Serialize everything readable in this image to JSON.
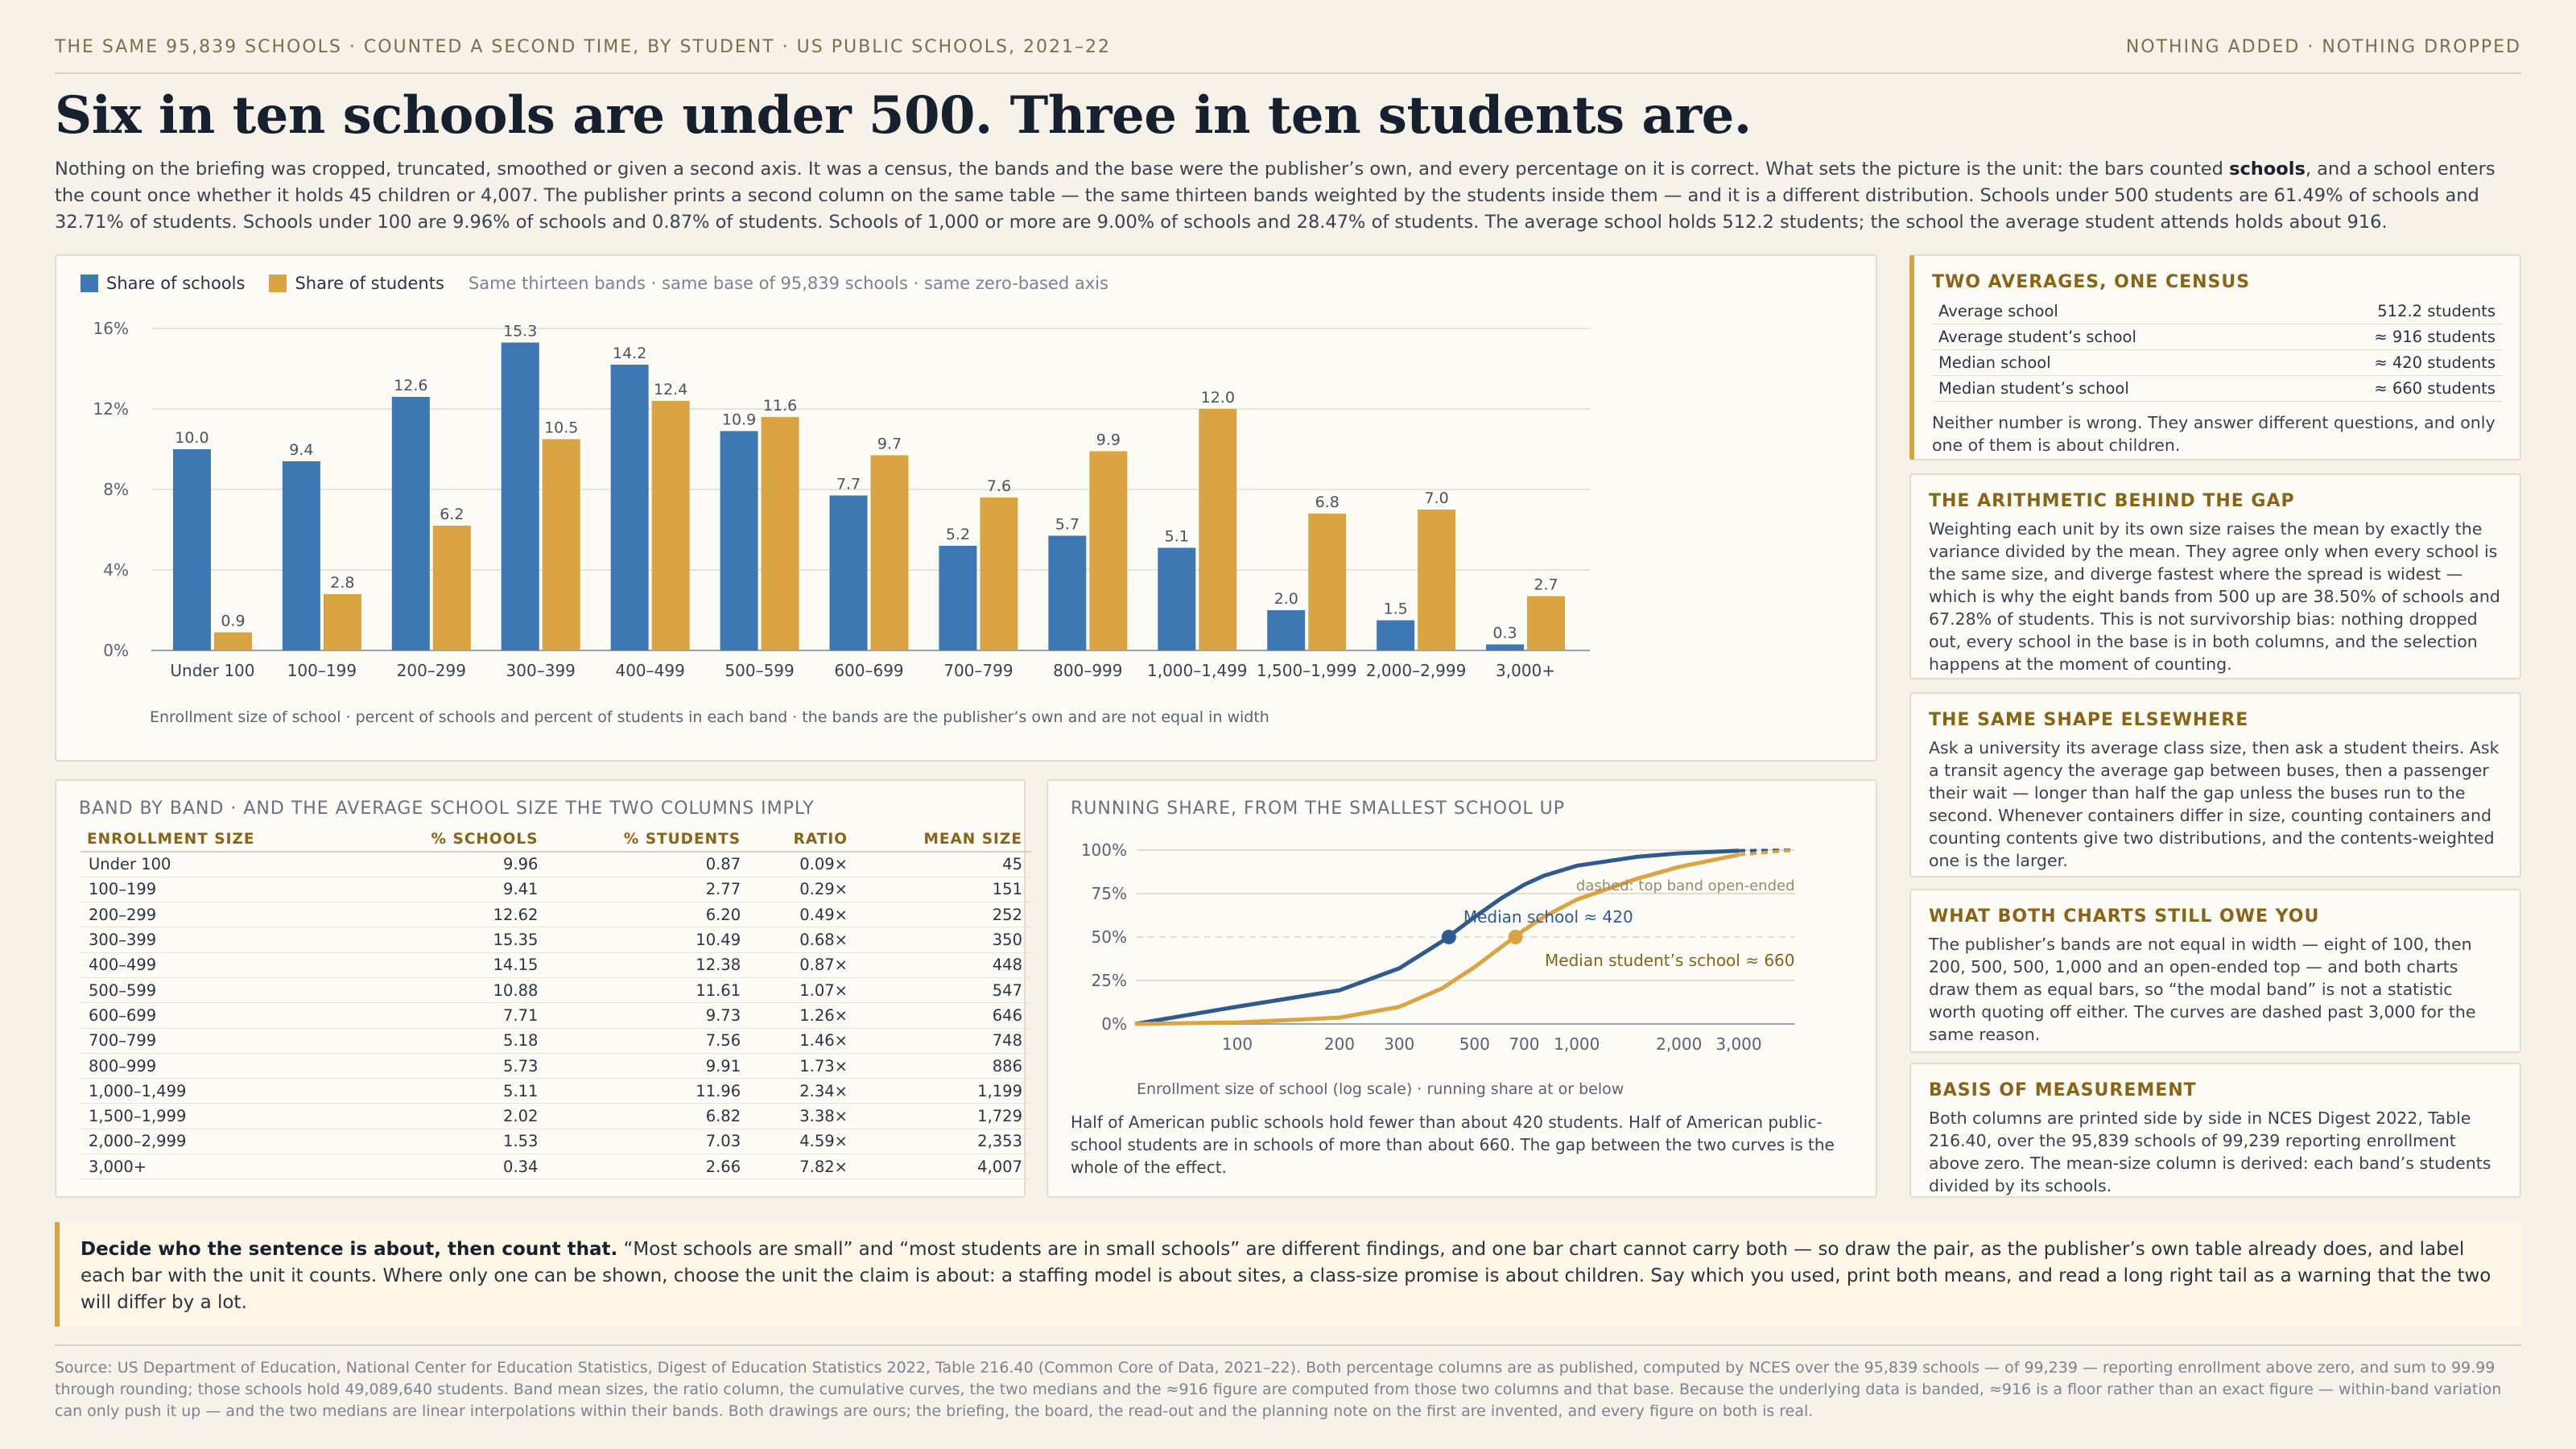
{
  "header": {
    "kicker": "THE SAME 95,839 SCHOOLS · COUNTED A SECOND TIME, BY STUDENT · US PUBLIC SCHOOLS, 2021–22",
    "tagline": "NOTHING ADDED · NOTHING DROPPED",
    "title": "Six in ten schools are under 500. Three in ten students are.",
    "intro_pre": "Nothing on the briefing was cropped, truncated, smoothed or given a second axis. It was a census, the bands and the base were the publisher’s own, and every percentage on it is correct. What sets the picture is the unit: the bars counted ",
    "intro_bold": "schools",
    "intro_post": ", and a school enters the count once whether it holds 45 children or 4,007. The publisher prints a second column on the same table — the same thirteen bands weighted by the students inside them — and it is a different distribution. Schools under 500 students are 61.49% of schools and 32.71% of students. Schools under 100 are 9.96% of schools and 0.87% of students. Schools of 1,000 or more are 9.00% of schools and 28.47% of students. The average school holds 512.2 students; the school the average student attends holds about 916."
  },
  "bar_chart": {
    "legend_schools": "Share of schools",
    "legend_students": "Share of students",
    "legend_note": "Same thirteen bands · same base of 95,839 schools · same zero-based axis",
    "caption": "Enrollment size of school · percent of schools and percent of students in each band · the bands are the publisher’s own and are not equal in width",
    "colors": {
      "schools": "#3d78b3",
      "students": "#d9a441"
    }
  },
  "chart_data": [
    {
      "type": "bar",
      "categories": [
        "Under 100",
        "100–199",
        "200–299",
        "300–399",
        "400–499",
        "500–599",
        "600–699",
        "700–799",
        "800–999",
        "1,000–1,499",
        "1,500–1,999",
        "2,000–2,999",
        "3,000+"
      ],
      "series": [
        {
          "name": "Share of schools",
          "values": [
            10.0,
            9.4,
            12.6,
            15.3,
            14.2,
            10.9,
            7.7,
            5.2,
            5.7,
            5.1,
            2.0,
            1.5,
            0.3
          ]
        },
        {
          "name": "Share of students",
          "values": [
            0.9,
            2.8,
            6.2,
            10.5,
            12.4,
            11.6,
            9.7,
            7.6,
            9.9,
            12.0,
            6.8,
            7.0,
            2.7
          ]
        }
      ],
      "y_ticks": [
        "0%",
        "4%",
        "8%",
        "12%",
        "16%"
      ],
      "ylim": [
        0,
        16
      ],
      "grid": true,
      "legend": "top-left"
    },
    {
      "type": "line",
      "title": "RUNNING SHARE, FROM THE SMALLEST SCHOOL UP",
      "xlabel": "Enrollment size of school (log scale) · running share at or below",
      "x_scale": "log",
      "x_ticks": [
        100,
        200,
        300,
        500,
        700,
        1000,
        2000,
        3000
      ],
      "x_tick_labels": [
        "100",
        "200",
        "300",
        "500",
        "700",
        "1,000",
        "2,000",
        "3,000"
      ],
      "y_ticks": [
        "0%",
        "25%",
        "50%",
        "75%",
        "100%"
      ],
      "ylim": [
        0,
        100
      ],
      "series": [
        {
          "name": "schools",
          "x": [
            50,
            100,
            200,
            300,
            400,
            500,
            600,
            700,
            800,
            1000,
            1500,
            2000,
            3000
          ],
          "y": [
            0,
            9.96,
            19.37,
            31.99,
            47.34,
            61.49,
            72.37,
            80.08,
            85.26,
            90.99,
            96.1,
            98.12,
            99.65
          ]
        },
        {
          "name": "students",
          "x": [
            50,
            100,
            200,
            300,
            400,
            500,
            600,
            700,
            800,
            1000,
            1500,
            2000,
            3000
          ],
          "y": [
            0,
            0.87,
            3.64,
            9.84,
            20.33,
            32.71,
            44.32,
            54.05,
            61.61,
            71.52,
            83.48,
            90.3,
            97.33
          ]
        }
      ],
      "annotations": {
        "median_school": "Median school ≈ 420",
        "median_student": "Median student’s school ≈ 660",
        "dashed_note": "dashed: top band open-ended",
        "median_school_x": 420,
        "median_student_x": 660
      },
      "caption": "Half of American public schools hold fewer than about 420 students. Half of American public-school students are in schools of more than about 660. The gap between the two curves is the whole of the effect."
    },
    {
      "type": "table",
      "title": "BAND BY BAND · AND THE AVERAGE SCHOOL SIZE THE TWO COLUMNS IMPLY",
      "columns": [
        "ENROLLMENT SIZE",
        "% SCHOOLS",
        "% STUDENTS",
        "RATIO",
        "MEAN SIZE"
      ],
      "rows": [
        [
          "Under 100",
          "9.96",
          "0.87",
          "0.09×",
          "45"
        ],
        [
          "100–199",
          "9.41",
          "2.77",
          "0.29×",
          "151"
        ],
        [
          "200–299",
          "12.62",
          "6.20",
          "0.49×",
          "252"
        ],
        [
          "300–399",
          "15.35",
          "10.49",
          "0.68×",
          "350"
        ],
        [
          "400–499",
          "14.15",
          "12.38",
          "0.87×",
          "448"
        ],
        [
          "500–599",
          "10.88",
          "11.61",
          "1.07×",
          "547"
        ],
        [
          "600–699",
          "7.71",
          "9.73",
          "1.26×",
          "646"
        ],
        [
          "700–799",
          "5.18",
          "7.56",
          "1.46×",
          "748"
        ],
        [
          "800–999",
          "5.73",
          "9.91",
          "1.73×",
          "886"
        ],
        [
          "1,000–1,499",
          "5.11",
          "11.96",
          "2.34×",
          "1,199"
        ],
        [
          "1,500–1,999",
          "2.02",
          "6.82",
          "3.38×",
          "1,729"
        ],
        [
          "2,000–2,999",
          "1.53",
          "7.03",
          "4.59×",
          "2,353"
        ],
        [
          "3,000+",
          "0.34",
          "2.66",
          "7.82×",
          "4,007"
        ]
      ]
    }
  ],
  "sidebar": {
    "averages": {
      "title": "TWO AVERAGES, ONE CENSUS",
      "rows": [
        [
          "Average school",
          "512.2 students"
        ],
        [
          "Average student’s school",
          "≈ 916 students"
        ],
        [
          "Median school",
          "≈ 420 students"
        ],
        [
          "Median student’s school",
          "≈ 660 students"
        ]
      ],
      "note": "Neither number is wrong. They answer different questions, and only one of them is about children."
    },
    "arithmetic": {
      "title": "THE ARITHMETIC BEHIND THE GAP",
      "body": "Weighting each unit by its own size raises the mean by exactly the variance divided by the mean. They agree only when every school is the same size, and diverge fastest where the spread is widest — which is why the eight bands from 500 up are 38.50% of schools and 67.28% of students. This is not survivorship bias: nothing dropped out, every school in the base is in both columns, and the selection happens at the moment of counting."
    },
    "shape": {
      "title": "THE SAME SHAPE ELSEWHERE",
      "body": "Ask a university its average class size, then ask a student theirs. Ask a transit agency the average gap between buses, then a passenger their wait — longer than half the gap unless the buses run to the second. Whenever containers differ in size, counting containers and counting contents give two distributions, and the contents-weighted one is the larger."
    },
    "owe": {
      "title": "WHAT BOTH CHARTS STILL OWE YOU",
      "body": "The publisher’s bands are not equal in width — eight of 100, then 200, 500, 500, 1,000 and an open-ended top — and both charts draw them as equal bars, so “the modal band” is not a statistic worth quoting off either. The curves are dashed past 3,000 for the same reason."
    },
    "basis": {
      "title": "BASIS OF MEASUREMENT",
      "body": "Both columns are printed side by side in NCES Digest 2022, Table 216.40, over the 95,839 schools of 99,239 reporting enrollment above zero. The mean-size column is derived: each band’s students divided by its schools."
    }
  },
  "callout": {
    "bold": "Decide who the sentence is about, then count that.",
    "text": " “Most schools are small” and “most students are in small schools” are different findings, and one bar chart cannot carry both — so draw the pair, as the publisher’s own table already does, and label each bar with the unit it counts. Where only one can be shown, choose the unit the claim is about: a staffing model is about sites, a class-size promise is about children. Say which you used, print both means, and read a long right tail as a warning that the two will differ by a lot."
  },
  "footer": "Source: US Department of Education, National Center for Education Statistics, Digest of Education Statistics 2022, Table 216.40 (Common Core of Data, 2021–22). Both percentage columns are as published, computed by NCES over the 95,839 schools — of 99,239 — reporting enrollment above zero, and sum to 99.99 through rounding; those schools hold 49,089,640 students. Band mean sizes, the ratio column, the cumulative curves, the two medians and the ≈916 figure are computed from those two columns and that base. Because the underlying data is banded, ≈916 is a floor rather than an exact figure — within-band variation can only push it up — and the two medians are linear interpolations within their bands. Both drawings are ours; the briefing, the board, the read-out and the planning note on the first are invented, and every figure on both is real."
}
